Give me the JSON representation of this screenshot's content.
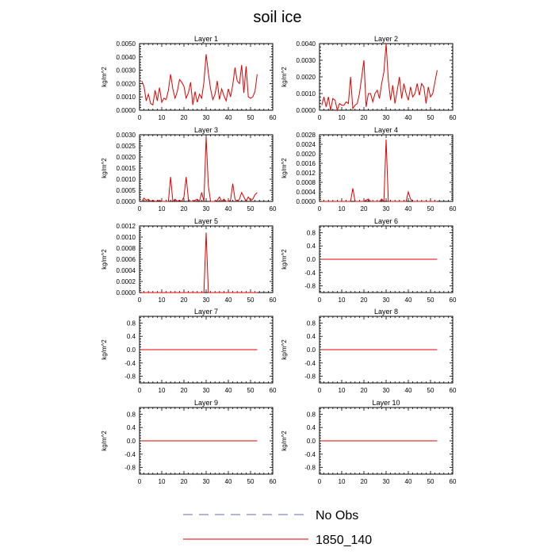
{
  "figure": {
    "title": "soil ice",
    "colors": {
      "series": "#e00000",
      "no_obs": "#6a6aa8",
      "axis": "#000000"
    }
  },
  "legend": [
    {
      "label": "No Obs",
      "style": "dashed",
      "color": "#6a6aa8"
    },
    {
      "label": "1850_140",
      "style": "solid",
      "color": "#e00000"
    }
  ],
  "chart_data": [
    {
      "type": "line",
      "title": "Layer 1",
      "ylabel": "kg/m^2",
      "xlim": [
        0,
        60
      ],
      "xticks": [
        0,
        10,
        20,
        30,
        40,
        50,
        60
      ],
      "ylim": [
        0,
        0.005
      ],
      "yticks": [
        0,
        0.001,
        0.002,
        0.003,
        0.004,
        0.005
      ],
      "ydecimals": 4,
      "series": [
        {
          "name": "1850_140",
          "x_start": 1,
          "values": [
            0.0022,
            0.0018,
            0.0007,
            0.0012,
            0.0005,
            0.0004,
            0.0015,
            0.0007,
            0.0017,
            0.0006,
            0.0009,
            0.0008,
            0.0015,
            0.0027,
            0.0016,
            0.0009,
            0.0014,
            0.0023,
            0.0021,
            0.0018,
            0.0009,
            0.0013,
            0.0021,
            0.0004,
            0.0014,
            0.0006,
            0.0012,
            0.0009,
            0.0021,
            0.0042,
            0.0028,
            0.0016,
            0.0008,
            0.0012,
            0.0022,
            0.0008,
            0.0016,
            0.0011,
            0.0007,
            0.0016,
            0.001,
            0.0019,
            0.0032,
            0.0022,
            0.002,
            0.0034,
            0.0013,
            0.0033,
            0.001,
            0.0009,
            0.001,
            0.0014,
            0.0027
          ]
        }
      ]
    },
    {
      "type": "line",
      "title": "Layer 2",
      "ylabel": "kg/m^2",
      "xlim": [
        0,
        60
      ],
      "xticks": [
        0,
        10,
        20,
        30,
        40,
        50,
        60
      ],
      "ylim": [
        0,
        0.004
      ],
      "yticks": [
        0,
        0.001,
        0.002,
        0.003,
        0.004
      ],
      "ydecimals": 4,
      "series": [
        {
          "name": "1850_140",
          "x_start": 1,
          "values": [
            0.0003,
            0.0008,
            0.0002,
            0.0008,
            0.0,
            0.0007,
            0.0006,
            0.0,
            0.0004,
            0.0003,
            0.0003,
            0.0005,
            0.0004,
            0.002,
            0.0001,
            0.0003,
            0.0004,
            0.001,
            0.002,
            0.003,
            0.0002,
            0.001,
            0.001,
            0.0005,
            0.001,
            0.0012,
            0.0007,
            0.0016,
            0.0023,
            0.004,
            0.0018,
            0.0006,
            0.0015,
            0.0004,
            0.0012,
            0.002,
            0.0007,
            0.0016,
            0.001,
            0.0006,
            0.0014,
            0.0008,
            0.001,
            0.0016,
            0.0009,
            0.0016,
            0.0014,
            0.0004,
            0.0014,
            0.0008,
            0.001,
            0.0017,
            0.0024
          ]
        }
      ]
    },
    {
      "type": "line",
      "title": "Layer 3",
      "ylabel": "kg/m^2",
      "xlim": [
        0,
        60
      ],
      "xticks": [
        0,
        10,
        20,
        30,
        40,
        50,
        60
      ],
      "ylim": [
        0,
        0.003
      ],
      "yticks": [
        0,
        0.0005,
        0.001,
        0.0015,
        0.002,
        0.0025,
        0.003
      ],
      "ydecimals": 4,
      "series": [
        {
          "name": "1850_140",
          "x_start": 1,
          "values": [
            0.0,
            0.00015,
            5e-05,
            0.0001,
            0.0,
            5e-05,
            0.0,
            2e-05,
            5e-05,
            0.0,
            0.0,
            0.0,
            0.0,
            0.0011,
            0.0,
            0.0001,
            0.0,
            5e-05,
            0.0,
            0.0002,
            0.0011,
            0.0001,
            0.0,
            0.0,
            5e-05,
            0.0001,
            0.0,
            0.0004,
            0.0,
            0.0029,
            0.0007,
            0.0,
            0.0,
            0.0,
            5e-05,
            0.0002,
            0.0,
            0.0001,
            0.0,
            0.0,
            5e-05,
            0.0008,
            0.0001,
            0.0,
            0.0001,
            0.0004,
            0.0002,
            0.0,
            0.0002,
            5e-05,
            0.0001,
            0.0003,
            0.0004
          ]
        }
      ]
    },
    {
      "type": "line",
      "title": "Layer 4",
      "ylabel": "kg/m^2",
      "xlim": [
        0,
        60
      ],
      "xticks": [
        0,
        10,
        20,
        30,
        40,
        50,
        60
      ],
      "ylim": [
        0,
        0.0028
      ],
      "yticks": [
        0,
        0.0004,
        0.0008,
        0.0012,
        0.0016,
        0.002,
        0.0024,
        0.0028
      ],
      "ydecimals": 4,
      "series": [
        {
          "name": "1850_140",
          "x_start": 1,
          "values": [
            0,
            0,
            0,
            0,
            0,
            0,
            0,
            0,
            0,
            0,
            0,
            0,
            0,
            0,
            0.00055,
            0,
            0,
            0,
            0,
            0,
            5e-05,
            0.0001,
            0,
            0,
            0,
            0,
            0,
            0.0001,
            0,
            0.0026,
            0,
            0,
            0,
            0,
            0,
            0,
            0,
            0,
            0,
            0.0004,
            0.0001,
            0,
            0,
            0,
            0,
            0,
            0,
            0,
            0,
            0,
            0,
            0,
            0
          ]
        }
      ]
    },
    {
      "type": "line",
      "title": "Layer 5",
      "ylabel": "kg/m^2",
      "xlim": [
        0,
        60
      ],
      "xticks": [
        0,
        10,
        20,
        30,
        40,
        50,
        60
      ],
      "ylim": [
        0,
        0.0012
      ],
      "yticks": [
        0,
        0.0002,
        0.0004,
        0.0006,
        0.0008,
        0.001,
        0.0012
      ],
      "ydecimals": 4,
      "series": [
        {
          "name": "1850_140",
          "x_start": 1,
          "values": [
            0,
            0,
            0,
            0,
            0,
            0,
            0,
            0,
            0,
            0,
            0,
            0,
            0,
            0,
            0,
            0,
            0,
            0,
            0,
            0,
            0,
            0,
            0,
            0,
            0,
            0,
            0,
            0,
            0,
            0.00108,
            0,
            0,
            0,
            0,
            0,
            0,
            0,
            0,
            0,
            0,
            0,
            0,
            0,
            0,
            0,
            0,
            0,
            0,
            0,
            0,
            0,
            0,
            0
          ]
        }
      ]
    },
    {
      "type": "line",
      "title": "Layer 6",
      "ylabel": "kg/m^2",
      "xlim": [
        0,
        60
      ],
      "xticks": [
        0,
        10,
        20,
        30,
        40,
        50,
        60
      ],
      "ylim": [
        -1,
        1
      ],
      "yticks": [
        -0.8,
        -0.4,
        0,
        0.4,
        0.8
      ],
      "ydecimals": 1,
      "series": [
        {
          "name": "1850_140",
          "x_start": 1,
          "constant": 0,
          "count": 53
        }
      ]
    },
    {
      "type": "line",
      "title": "Layer 7",
      "ylabel": "kg/m^2",
      "xlim": [
        0,
        60
      ],
      "xticks": [
        0,
        10,
        20,
        30,
        40,
        50,
        60
      ],
      "ylim": [
        -1,
        1
      ],
      "yticks": [
        -0.8,
        -0.4,
        0,
        0.4,
        0.8
      ],
      "ydecimals": 1,
      "series": [
        {
          "name": "1850_140",
          "x_start": 1,
          "constant": 0,
          "count": 53
        }
      ]
    },
    {
      "type": "line",
      "title": "Layer 8",
      "ylabel": "kg/m^2",
      "xlim": [
        0,
        60
      ],
      "xticks": [
        0,
        10,
        20,
        30,
        40,
        50,
        60
      ],
      "ylim": [
        -1,
        1
      ],
      "yticks": [
        -0.8,
        -0.4,
        0,
        0.4,
        0.8
      ],
      "ydecimals": 1,
      "series": [
        {
          "name": "1850_140",
          "x_start": 1,
          "constant": 0,
          "count": 53
        }
      ]
    },
    {
      "type": "line",
      "title": "Layer 9",
      "ylabel": "kg/m^2",
      "xlim": [
        0,
        60
      ],
      "xticks": [
        0,
        10,
        20,
        30,
        40,
        50,
        60
      ],
      "ylim": [
        -1,
        1
      ],
      "yticks": [
        -0.8,
        -0.4,
        0,
        0.4,
        0.8
      ],
      "ydecimals": 1,
      "series": [
        {
          "name": "1850_140",
          "x_start": 1,
          "constant": 0,
          "count": 53
        }
      ]
    },
    {
      "type": "line",
      "title": "Layer 10",
      "ylabel": "kg/m^2",
      "xlim": [
        0,
        60
      ],
      "xticks": [
        0,
        10,
        20,
        30,
        40,
        50,
        60
      ],
      "ylim": [
        -1,
        1
      ],
      "yticks": [
        -0.8,
        -0.4,
        0,
        0.4,
        0.8
      ],
      "ydecimals": 1,
      "series": [
        {
          "name": "1850_140",
          "x_start": 1,
          "constant": 0,
          "count": 53
        }
      ]
    }
  ]
}
